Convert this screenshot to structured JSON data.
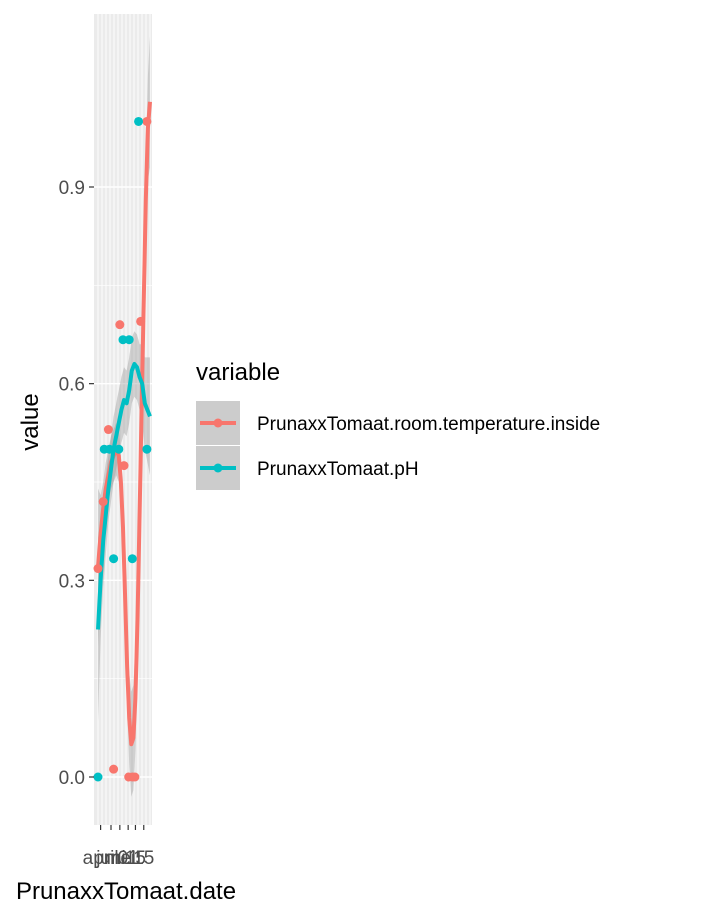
{
  "chart_data": {
    "type": "line",
    "xlabel": "PrunaxxTomaat.date",
    "ylabel": "value",
    "x_tick_labels": [
      "april",
      "juni",
      "mei",
      "01",
      "15",
      "15"
    ],
    "y_ticks": [
      0.0,
      0.3,
      0.6,
      0.9
    ],
    "y_tick_labels": [
      "0.0",
      "0.3",
      "0.6",
      "0.9"
    ],
    "ylim": [
      -0.08,
      1.15
    ],
    "grid": true,
    "legend": {
      "title": "variable",
      "position": "right",
      "entries": [
        "PrunaxxTomaat.room.temperature.inside",
        "PrunaxxTomaat.pH"
      ]
    },
    "series": [
      {
        "name": "PrunaxxTomaat.room.temperature.inside",
        "color": "#F8766D",
        "points": [
          [
            0.0,
            0.318
          ],
          [
            0.1,
            0.42
          ],
          [
            0.2,
            0.53
          ],
          [
            0.3,
            0.012
          ],
          [
            0.42,
            0.69
          ],
          [
            0.5,
            0.475
          ],
          [
            0.59,
            0.0
          ],
          [
            0.66,
            0.0
          ],
          [
            0.71,
            0.0
          ],
          [
            0.82,
            0.695
          ],
          [
            0.94,
            1.0
          ]
        ],
        "smooth": [
          [
            0.0,
            0.32
          ],
          [
            0.05,
            0.37
          ],
          [
            0.1,
            0.41
          ],
          [
            0.15,
            0.44
          ],
          [
            0.2,
            0.46
          ],
          [
            0.25,
            0.48
          ],
          [
            0.3,
            0.49
          ],
          [
            0.35,
            0.5
          ],
          [
            0.4,
            0.49
          ],
          [
            0.44,
            0.45
          ],
          [
            0.48,
            0.38
          ],
          [
            0.52,
            0.28
          ],
          [
            0.56,
            0.17
          ],
          [
            0.6,
            0.09
          ],
          [
            0.64,
            0.05
          ],
          [
            0.68,
            0.06
          ],
          [
            0.72,
            0.12
          ],
          [
            0.76,
            0.24
          ],
          [
            0.8,
            0.4
          ],
          [
            0.84,
            0.57
          ],
          [
            0.88,
            0.73
          ],
          [
            0.92,
            0.88
          ],
          [
            0.96,
            0.99
          ],
          [
            1.0,
            1.03
          ]
        ],
        "band": [
          0.12,
          0.06,
          0.04,
          0.04,
          0.04,
          0.04,
          0.04,
          0.04,
          0.04,
          0.04,
          0.05,
          0.05,
          0.06,
          0.07,
          0.08,
          0.08,
          0.08,
          0.07,
          0.06,
          0.05,
          0.05,
          0.06,
          0.08,
          0.1
        ]
      },
      {
        "name": "PrunaxxTomaat.pH",
        "color": "#00BFC4",
        "points": [
          [
            0.0,
            0.0
          ],
          [
            0.12,
            0.5
          ],
          [
            0.22,
            0.5
          ],
          [
            0.3,
            0.333
          ],
          [
            0.4,
            0.5
          ],
          [
            0.48,
            0.667
          ],
          [
            0.6,
            0.667
          ],
          [
            0.66,
            0.333
          ],
          [
            0.78,
            1.0
          ],
          [
            0.94,
            0.5
          ]
        ],
        "smooth": [
          [
            0.0,
            0.225
          ],
          [
            0.05,
            0.3
          ],
          [
            0.1,
            0.36
          ],
          [
            0.15,
            0.4
          ],
          [
            0.2,
            0.44
          ],
          [
            0.25,
            0.47
          ],
          [
            0.3,
            0.5
          ],
          [
            0.35,
            0.52
          ],
          [
            0.4,
            0.54
          ],
          [
            0.45,
            0.56
          ],
          [
            0.5,
            0.575
          ],
          [
            0.55,
            0.57
          ],
          [
            0.6,
            0.59
          ],
          [
            0.65,
            0.62
          ],
          [
            0.7,
            0.63
          ],
          [
            0.75,
            0.625
          ],
          [
            0.8,
            0.61
          ],
          [
            0.85,
            0.6
          ],
          [
            0.9,
            0.57
          ],
          [
            0.95,
            0.56
          ],
          [
            1.0,
            0.55
          ]
        ],
        "band": [
          0.14,
          0.09,
          0.07,
          0.06,
          0.05,
          0.05,
          0.05,
          0.05,
          0.05,
          0.05,
          0.05,
          0.05,
          0.05,
          0.05,
          0.05,
          0.05,
          0.05,
          0.06,
          0.07,
          0.08,
          0.09
        ]
      }
    ]
  }
}
